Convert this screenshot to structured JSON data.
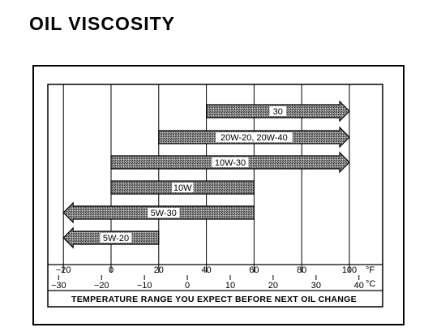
{
  "title": "OIL VISCOSITY",
  "fahrenheit": {
    "unit": "°F",
    "ticks": [
      {
        "value": -20,
        "label": "−20"
      },
      {
        "value": 0,
        "label": "0"
      },
      {
        "value": 20,
        "label": "20"
      },
      {
        "value": 40,
        "label": "40"
      },
      {
        "value": 60,
        "label": "60"
      },
      {
        "value": 80,
        "label": "80"
      },
      {
        "value": 100,
        "label": "100"
      }
    ]
  },
  "celsius": {
    "unit": "°C",
    "ticks": [
      {
        "value": -30,
        "label": "−30"
      },
      {
        "value": -20,
        "label": "−20"
      },
      {
        "value": -10,
        "label": "−10"
      },
      {
        "value": 0,
        "label": "0"
      },
      {
        "value": 10,
        "label": "10"
      },
      {
        "value": 20,
        "label": "20"
      },
      {
        "value": 30,
        "label": "30"
      },
      {
        "value": 40,
        "label": "40"
      }
    ]
  },
  "grades": [
    {
      "label": "30",
      "min_f": 40,
      "max_f": 100,
      "arrow_low": false,
      "arrow_high": true
    },
    {
      "label": "20W-20, 20W-40",
      "min_f": 20,
      "max_f": 100,
      "arrow_low": false,
      "arrow_high": true
    },
    {
      "label": "10W-30",
      "min_f": 0,
      "max_f": 100,
      "arrow_low": false,
      "arrow_high": true
    },
    {
      "label": "10W",
      "min_f": 0,
      "max_f": 60,
      "arrow_low": false,
      "arrow_high": false
    },
    {
      "label": "5W-30",
      "min_f": -20,
      "max_f": 60,
      "arrow_low": true,
      "arrow_high": false
    },
    {
      "label": "5W-20",
      "min_f": -20,
      "max_f": 20,
      "arrow_low": true,
      "arrow_high": false
    }
  ],
  "caption": "TEMPERATURE RANGE YOU EXPECT BEFORE NEXT OIL CHANGE"
}
